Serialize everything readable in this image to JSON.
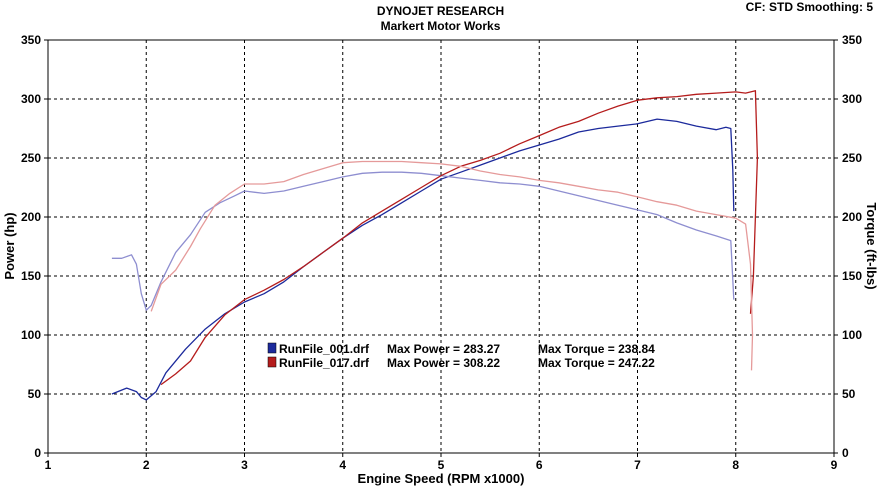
{
  "header": {
    "title": "DYNOJET RESEARCH",
    "subtitle": "Markert Motor Works",
    "cf_smoothing": "CF: STD  Smoothing: 5"
  },
  "chart_data": {
    "type": "line",
    "xlabel": "Engine Speed (RPM x1000)",
    "ylabel_left": "Power (hp)",
    "ylabel_right": "Torque (ft-lbs)",
    "xlim": [
      1,
      9
    ],
    "ylim": [
      0,
      350
    ],
    "x_ticks": [
      "1",
      "2",
      "3",
      "4",
      "5",
      "6",
      "7",
      "8",
      "9"
    ],
    "y_ticks": [
      "0",
      "50",
      "100",
      "150",
      "200",
      "250",
      "300",
      "350"
    ],
    "grid": true,
    "colors": {
      "run1": "#1c2a9c",
      "run1_torque": "#8e8ed0",
      "run2": "#b51c1c",
      "run2_torque": "#e59a9a"
    },
    "legend": [
      {
        "name": "RunFile_001.drf",
        "max_power_text": "Max Power = 283.27",
        "max_torque_text": "Max Torque = 238.84",
        "color": "#1c2a9c"
      },
      {
        "name": "RunFile_017.drf",
        "max_power_text": "Max Power = 308.22",
        "max_torque_text": "Max Torque = 247.22",
        "color": "#b51c1c"
      }
    ],
    "series": [
      {
        "id": "run1_power",
        "color": "#1c2a9c",
        "points": [
          [
            1.65,
            50
          ],
          [
            1.8,
            55
          ],
          [
            1.9,
            52
          ],
          [
            1.95,
            47
          ],
          [
            2.0,
            45
          ],
          [
            2.1,
            52
          ],
          [
            2.2,
            68
          ],
          [
            2.4,
            88
          ],
          [
            2.6,
            105
          ],
          [
            2.8,
            118
          ],
          [
            3.0,
            128
          ],
          [
            3.2,
            135
          ],
          [
            3.4,
            145
          ],
          [
            3.6,
            158
          ],
          [
            3.8,
            170
          ],
          [
            4.0,
            182
          ],
          [
            4.2,
            193
          ],
          [
            4.4,
            202
          ],
          [
            4.6,
            212
          ],
          [
            4.8,
            222
          ],
          [
            5.0,
            232
          ],
          [
            5.2,
            238
          ],
          [
            5.4,
            244
          ],
          [
            5.6,
            250
          ],
          [
            5.8,
            256
          ],
          [
            6.0,
            261
          ],
          [
            6.2,
            266
          ],
          [
            6.4,
            272
          ],
          [
            6.6,
            275
          ],
          [
            6.8,
            277
          ],
          [
            7.0,
            279
          ],
          [
            7.2,
            283
          ],
          [
            7.4,
            281
          ],
          [
            7.6,
            277
          ],
          [
            7.8,
            274
          ],
          [
            7.9,
            276
          ],
          [
            7.95,
            275
          ],
          [
            7.97,
            240
          ],
          [
            7.98,
            205
          ]
        ]
      },
      {
        "id": "run1_torque",
        "color": "#8e8ed0",
        "points": [
          [
            1.65,
            165
          ],
          [
            1.75,
            165
          ],
          [
            1.85,
            168
          ],
          [
            1.9,
            160
          ],
          [
            1.95,
            135
          ],
          [
            2.0,
            121
          ],
          [
            2.05,
            125
          ],
          [
            2.15,
            145
          ],
          [
            2.3,
            170
          ],
          [
            2.45,
            185
          ],
          [
            2.6,
            204
          ],
          [
            2.75,
            212
          ],
          [
            2.9,
            218
          ],
          [
            3.0,
            222
          ],
          [
            3.2,
            220
          ],
          [
            3.4,
            222
          ],
          [
            3.6,
            226
          ],
          [
            3.8,
            230
          ],
          [
            4.0,
            234
          ],
          [
            4.2,
            237
          ],
          [
            4.4,
            238
          ],
          [
            4.6,
            238
          ],
          [
            4.8,
            237
          ],
          [
            5.0,
            235
          ],
          [
            5.2,
            233
          ],
          [
            5.4,
            231
          ],
          [
            5.6,
            229
          ],
          [
            5.8,
            228
          ],
          [
            6.0,
            226
          ],
          [
            6.2,
            222
          ],
          [
            6.4,
            218
          ],
          [
            6.6,
            214
          ],
          [
            6.8,
            210
          ],
          [
            7.0,
            206
          ],
          [
            7.2,
            202
          ],
          [
            7.4,
            195
          ],
          [
            7.6,
            189
          ],
          [
            7.8,
            184
          ],
          [
            7.95,
            180
          ],
          [
            7.98,
            130
          ]
        ]
      },
      {
        "id": "run2_power",
        "color": "#b51c1c",
        "points": [
          [
            2.15,
            58
          ],
          [
            2.3,
            67
          ],
          [
            2.45,
            78
          ],
          [
            2.6,
            98
          ],
          [
            2.8,
            117
          ],
          [
            3.0,
            130
          ],
          [
            3.2,
            138
          ],
          [
            3.4,
            147
          ],
          [
            3.6,
            158
          ],
          [
            3.8,
            170
          ],
          [
            4.0,
            182
          ],
          [
            4.2,
            195
          ],
          [
            4.4,
            205
          ],
          [
            4.6,
            215
          ],
          [
            4.8,
            225
          ],
          [
            5.0,
            235
          ],
          [
            5.2,
            243
          ],
          [
            5.4,
            248
          ],
          [
            5.6,
            254
          ],
          [
            5.8,
            262
          ],
          [
            6.0,
            269
          ],
          [
            6.2,
            276
          ],
          [
            6.4,
            281
          ],
          [
            6.6,
            288
          ],
          [
            6.8,
            294
          ],
          [
            7.0,
            299
          ],
          [
            7.2,
            301
          ],
          [
            7.4,
            302
          ],
          [
            7.6,
            304
          ],
          [
            7.8,
            305
          ],
          [
            8.0,
            306
          ],
          [
            8.1,
            305
          ],
          [
            8.2,
            307
          ],
          [
            8.22,
            250
          ],
          [
            8.18,
            150
          ],
          [
            8.15,
            118
          ]
        ]
      },
      {
        "id": "run2_torque",
        "color": "#e59a9a",
        "points": [
          [
            2.05,
            120
          ],
          [
            2.15,
            143
          ],
          [
            2.3,
            155
          ],
          [
            2.45,
            175
          ],
          [
            2.55,
            190
          ],
          [
            2.7,
            210
          ],
          [
            2.85,
            220
          ],
          [
            3.0,
            228
          ],
          [
            3.2,
            228
          ],
          [
            3.4,
            230
          ],
          [
            3.6,
            236
          ],
          [
            3.8,
            241
          ],
          [
            4.0,
            246
          ],
          [
            4.2,
            247
          ],
          [
            4.4,
            247
          ],
          [
            4.6,
            247
          ],
          [
            4.8,
            246
          ],
          [
            5.0,
            245
          ],
          [
            5.2,
            243
          ],
          [
            5.4,
            239
          ],
          [
            5.6,
            236
          ],
          [
            5.8,
            234
          ],
          [
            6.0,
            231
          ],
          [
            6.2,
            229
          ],
          [
            6.4,
            226
          ],
          [
            6.6,
            223
          ],
          [
            6.8,
            221
          ],
          [
            7.0,
            217
          ],
          [
            7.2,
            213
          ],
          [
            7.4,
            210
          ],
          [
            7.6,
            205
          ],
          [
            7.8,
            202
          ],
          [
            8.0,
            199
          ],
          [
            8.1,
            194
          ],
          [
            8.15,
            160
          ],
          [
            8.17,
            100
          ],
          [
            8.16,
            70
          ]
        ]
      }
    ]
  }
}
